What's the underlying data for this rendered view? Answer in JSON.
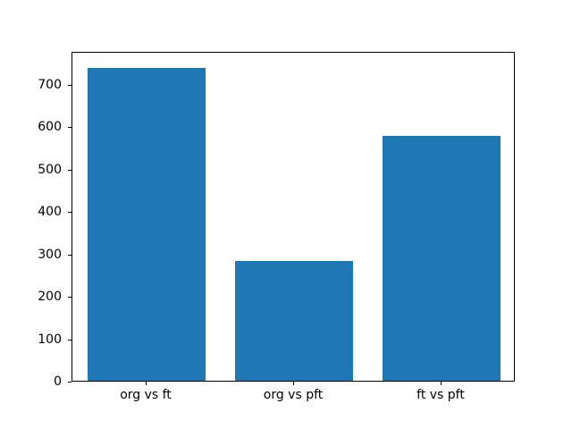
{
  "figure": {
    "background": "#ffffff",
    "axes_edge_color": "#000000",
    "text_color": "#000000"
  },
  "chart_data": {
    "type": "bar",
    "categories": [
      "org vs ft",
      "org vs pft",
      "ft vs pft"
    ],
    "values": [
      740,
      283,
      580
    ],
    "bar_color": "#1f77b4",
    "bar_width_fraction": 0.8,
    "ylim": [
      0,
      777
    ],
    "yticks": [
      0,
      100,
      200,
      300,
      400,
      500,
      600,
      700
    ],
    "grid": false,
    "legend": null
  }
}
